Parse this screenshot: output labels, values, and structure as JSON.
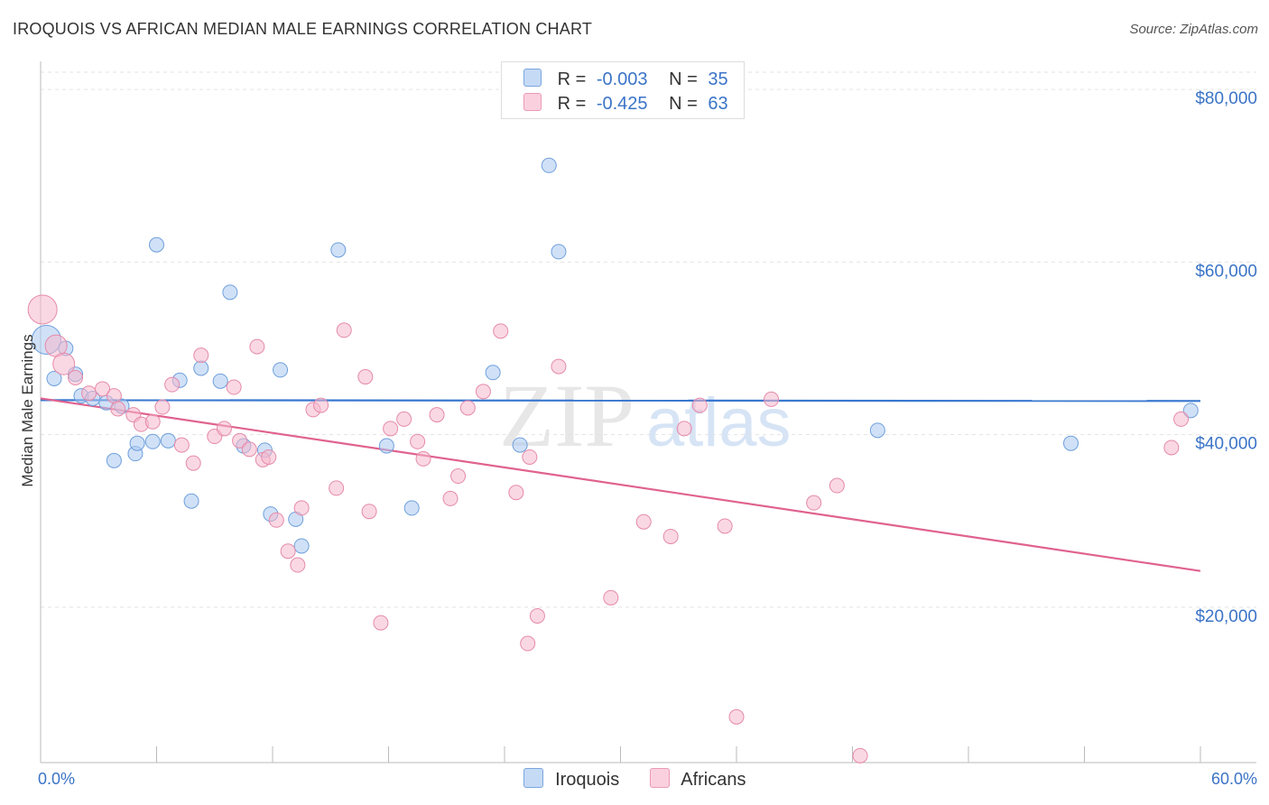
{
  "header": {
    "title": "IROQUOIS VS AFRICAN MEDIAN MALE EARNINGS CORRELATION CHART",
    "source": "Source: ZipAtlas.com"
  },
  "legend": {
    "rows": [
      {
        "r_label": "R =",
        "r_value": "-0.003",
        "n_label": "N =",
        "n_value": "35",
        "color": "#a9c8f0"
      },
      {
        "r_label": "R =",
        "r_value": "-0.425",
        "n_label": "N =",
        "n_value": "63",
        "color": "#f5b8cc"
      }
    ]
  },
  "bottom_legend": {
    "items": [
      {
        "label": "Iroquois",
        "color": "#a9c8f0"
      },
      {
        "label": "Africans",
        "color": "#f5b8cc"
      }
    ]
  },
  "watermark": {
    "zip": "ZIP",
    "atlas": "atlas"
  },
  "chart_data": {
    "type": "scatter",
    "title": "IROQUOIS VS AFRICAN MEDIAN MALE EARNINGS CORRELATION CHART",
    "xlabel": "",
    "ylabel": "Median Male Earnings",
    "xlim": [
      0,
      60
    ],
    "ylim": [
      2000,
      82000
    ],
    "x_tick_labels": [
      "0.0%",
      "60.0%"
    ],
    "y_ticks": [
      {
        "value": 80000,
        "label": "$80,000"
      },
      {
        "value": 60000,
        "label": "$60,000"
      },
      {
        "value": 40000,
        "label": "$40,000"
      },
      {
        "value": 20000,
        "label": "$20,000"
      }
    ],
    "series": [
      {
        "name": "Iroquois",
        "color": "#a9c8f0",
        "stroke": "#6f9fdc",
        "trend": {
          "x": [
            0,
            60
          ],
          "y": [
            44000,
            43900
          ],
          "color": "#3a78d0"
        },
        "points": [
          [
            0.3,
            51000,
            "large"
          ],
          [
            0.7,
            46500
          ],
          [
            1.3,
            50000
          ],
          [
            1.8,
            47000
          ],
          [
            2.1,
            44500
          ],
          [
            2.7,
            44200
          ],
          [
            3.4,
            43700
          ],
          [
            3.8,
            37000
          ],
          [
            4.2,
            43300
          ],
          [
            4.9,
            37800
          ],
          [
            5.0,
            39000
          ],
          [
            5.8,
            39200
          ],
          [
            6.0,
            62000
          ],
          [
            6.6,
            39300
          ],
          [
            7.2,
            46300
          ],
          [
            7.8,
            32300
          ],
          [
            8.3,
            47700
          ],
          [
            9.3,
            46200
          ],
          [
            9.8,
            56500
          ],
          [
            10.5,
            38700
          ],
          [
            11.6,
            38200
          ],
          [
            11.9,
            30800
          ],
          [
            12.4,
            47500
          ],
          [
            13.2,
            30200
          ],
          [
            13.5,
            27100
          ],
          [
            15.4,
            61400
          ],
          [
            17.9,
            38700
          ],
          [
            19.2,
            31500
          ],
          [
            23.4,
            47200
          ],
          [
            24.8,
            38800
          ],
          [
            26.3,
            71200
          ],
          [
            26.8,
            61200
          ],
          [
            43.3,
            40500
          ],
          [
            53.3,
            39000
          ],
          [
            59.5,
            42800
          ]
        ]
      },
      {
        "name": "Africans",
        "color": "#f5b8cc",
        "stroke": "#e58aaa",
        "trend": {
          "x": [
            0,
            60
          ],
          "y": [
            44200,
            24200
          ],
          "color": "#e0628f"
        },
        "points": [
          [
            0.1,
            54500,
            "large"
          ],
          [
            0.8,
            50300,
            "large"
          ],
          [
            1.2,
            48200,
            "large"
          ],
          [
            1.8,
            46600
          ],
          [
            2.5,
            44800
          ],
          [
            3.2,
            45300
          ],
          [
            3.8,
            44500
          ],
          [
            4.0,
            43000
          ],
          [
            4.8,
            42300
          ],
          [
            5.2,
            41200
          ],
          [
            5.8,
            41500
          ],
          [
            6.3,
            43200
          ],
          [
            6.8,
            45800
          ],
          [
            7.3,
            38800
          ],
          [
            7.9,
            36700
          ],
          [
            8.3,
            49200
          ],
          [
            9.0,
            39800
          ],
          [
            9.5,
            40700
          ],
          [
            10.0,
            45500
          ],
          [
            10.3,
            39300
          ],
          [
            10.8,
            38300
          ],
          [
            11.2,
            50200
          ],
          [
            11.5,
            37100
          ],
          [
            11.8,
            37400
          ],
          [
            12.2,
            30100
          ],
          [
            12.8,
            26500
          ],
          [
            13.3,
            24900
          ],
          [
            13.5,
            31500
          ],
          [
            14.1,
            42900
          ],
          [
            14.5,
            43400
          ],
          [
            15.3,
            33800
          ],
          [
            15.7,
            52100
          ],
          [
            16.8,
            46700
          ],
          [
            17.0,
            31100
          ],
          [
            17.6,
            18200
          ],
          [
            18.1,
            40700
          ],
          [
            18.8,
            41800
          ],
          [
            19.5,
            39200
          ],
          [
            19.8,
            37200
          ],
          [
            20.5,
            42300
          ],
          [
            21.2,
            32600
          ],
          [
            21.6,
            35200
          ],
          [
            22.1,
            43100
          ],
          [
            22.9,
            45000
          ],
          [
            23.8,
            52000
          ],
          [
            24.6,
            33300
          ],
          [
            25.3,
            37400
          ],
          [
            25.2,
            15800
          ],
          [
            25.7,
            19000
          ],
          [
            26.8,
            47900
          ],
          [
            29.5,
            21100
          ],
          [
            31.2,
            29900
          ],
          [
            32.6,
            28200
          ],
          [
            33.3,
            40700
          ],
          [
            34.1,
            43400
          ],
          [
            35.4,
            29400
          ],
          [
            36.0,
            7300
          ],
          [
            37.8,
            44100
          ],
          [
            40.0,
            32100
          ],
          [
            41.2,
            34100
          ],
          [
            42.4,
            2800
          ],
          [
            58.5,
            38500
          ],
          [
            59.0,
            41800
          ]
        ]
      }
    ]
  }
}
